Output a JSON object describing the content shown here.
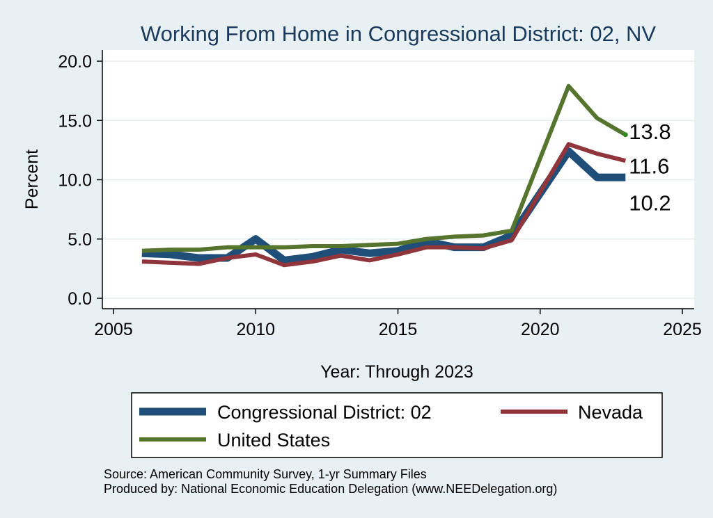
{
  "chart_data": {
    "type": "line",
    "title": "Working From Home in Congressional District: 02, NV",
    "xlabel": "Year: Through 2023",
    "ylabel": "Percent",
    "xlim": [
      2005,
      2025
    ],
    "ylim": [
      0,
      20
    ],
    "x_ticks": [
      "2005",
      "2010",
      "2015",
      "2020",
      "2025"
    ],
    "y_ticks": [
      "0.0",
      "5.0",
      "10.0",
      "15.0",
      "20.0"
    ],
    "grid": "horizontal",
    "legend_position": "bottom",
    "series": [
      {
        "name": "Congressional District: 02",
        "color": "#1f4e79",
        "x": [
          2006,
          2007,
          2008,
          2009,
          2010,
          2011,
          2012,
          2013,
          2014,
          2015,
          2016,
          2017,
          2018,
          2019,
          2021,
          2022,
          2023
        ],
        "y": [
          3.8,
          3.7,
          3.4,
          3.4,
          5.0,
          3.2,
          3.5,
          4.1,
          3.8,
          4.0,
          4.8,
          4.3,
          4.3,
          5.3,
          12.4,
          10.2,
          10.2
        ],
        "end_label": "10.2"
      },
      {
        "name": "Nevada",
        "color": "#90353b",
        "x": [
          2006,
          2007,
          2008,
          2009,
          2010,
          2011,
          2012,
          2013,
          2014,
          2015,
          2016,
          2017,
          2018,
          2019,
          2021,
          2022,
          2023
        ],
        "y": [
          3.1,
          3.0,
          2.9,
          3.4,
          3.7,
          2.8,
          3.1,
          3.6,
          3.2,
          3.7,
          4.3,
          4.3,
          4.2,
          4.9,
          13.0,
          12.2,
          11.6
        ],
        "end_label": "11.6"
      },
      {
        "name": "United States",
        "color": "#55752f",
        "x": [
          2006,
          2007,
          2008,
          2009,
          2010,
          2011,
          2012,
          2013,
          2014,
          2015,
          2016,
          2017,
          2018,
          2019,
          2021,
          2022,
          2023
        ],
        "y": [
          4.0,
          4.1,
          4.1,
          4.3,
          4.3,
          4.3,
          4.4,
          4.4,
          4.5,
          4.6,
          5.0,
          5.2,
          5.3,
          5.7,
          17.9,
          15.2,
          13.8
        ],
        "end_label": "13.8"
      }
    ],
    "source_note": "Source: American Community Survey, 1-yr Summary Files",
    "produced_note": "Produced by: National Economic Education Delegation (www.NEEDelegation.org)"
  },
  "colors": {
    "background": "#e9f0f3",
    "plot_background": "#ffffff",
    "title": "#1a3a5c",
    "grid": "#e4ecf0",
    "us_end_marker": "#2e8b1f"
  }
}
